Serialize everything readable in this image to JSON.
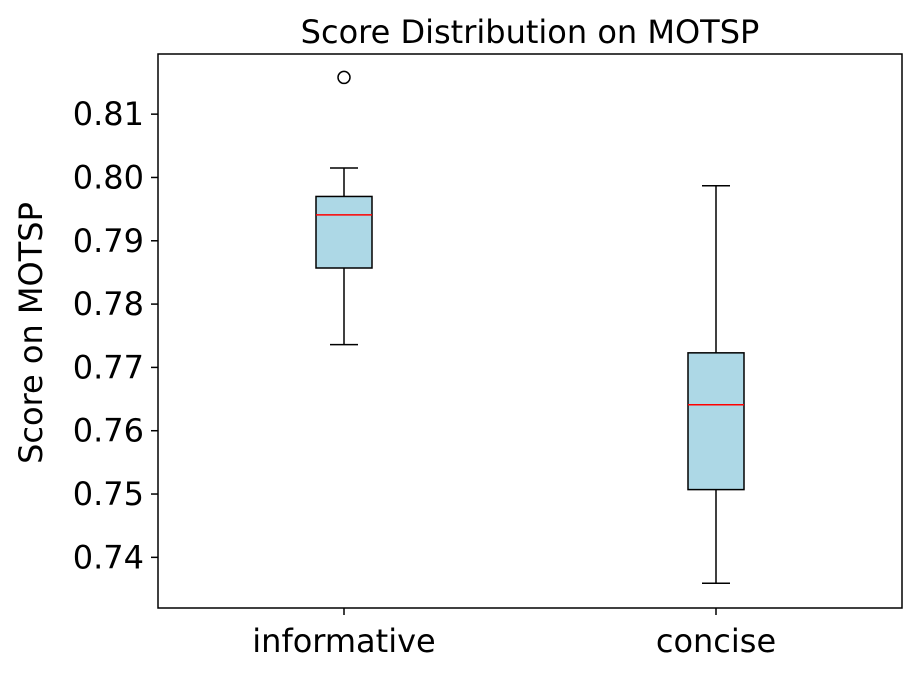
{
  "chart_data": {
    "type": "box",
    "title": "Score Distribution on MOTSP",
    "xlabel": "",
    "ylabel": "Score on MOTSP",
    "ylim": [
      0.732,
      0.8195
    ],
    "yticks": [
      "0.74",
      "0.75",
      "0.76",
      "0.77",
      "0.78",
      "0.79",
      "0.80",
      "0.81"
    ],
    "grid": false,
    "categories": [
      "informative",
      "concise"
    ],
    "boxes": [
      {
        "category": "informative",
        "whisker_low": 0.7736,
        "q1": 0.7857,
        "median": 0.7941,
        "q3": 0.797,
        "whisker_high": 0.8015,
        "outliers": [
          0.8158
        ]
      },
      {
        "category": "concise",
        "whisker_low": 0.7359,
        "q1": 0.7507,
        "median": 0.7641,
        "q3": 0.7723,
        "whisker_high": 0.7987,
        "outliers": []
      }
    ],
    "colors": {
      "box_fill": "#add8e6",
      "median": "#ff0000",
      "line": "#000000"
    }
  }
}
